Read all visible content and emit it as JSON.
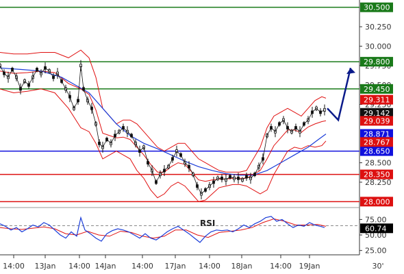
{
  "chart_data": [
    {
      "type": "line",
      "title": "",
      "description_style": "candlestick price with Bollinger Bands (red), moving average (blue), horizontal support/resistance lines, forecast arrow",
      "x_tick_labels": [
        "14:00",
        "13Jan",
        "14:00",
        "14Jan",
        "14:00",
        "17Jan",
        "14:00",
        "18Jan",
        "14:00",
        "19Jan",
        "30'"
      ],
      "y_axis_labels": [
        "30.250",
        "30.000",
        "29.750",
        "29.500",
        "29.250",
        "28.500",
        "28.250"
      ],
      "ylim": [
        27.95,
        30.55
      ],
      "levels": [
        {
          "label": "30.500",
          "value": 30.5,
          "color": "#1a7a1a"
        },
        {
          "label": "29.800",
          "value": 29.8,
          "color": "#1a7a1a"
        },
        {
          "label": "29.450",
          "value": 29.45,
          "color": "#1a7a1a"
        },
        {
          "label": "28.650",
          "value": 28.65,
          "color": "#1010dd"
        },
        {
          "label": "28.350",
          "value": 28.35,
          "color": "#dd1010"
        },
        {
          "label": "28.000",
          "value": 28.0,
          "color": "#dd1010"
        }
      ],
      "badges": [
        {
          "label": "29.311",
          "value": 29.311,
          "color": "#dd1010"
        },
        {
          "label": "29.142",
          "value": 29.142,
          "color": "#111111"
        },
        {
          "label": "29.039",
          "value": 29.039,
          "color": "#dd1010"
        },
        {
          "label": "28.871",
          "value": 28.871,
          "color": "#1010dd"
        },
        {
          "label": "28.767",
          "value": 28.767,
          "color": "#dd1010"
        }
      ],
      "price_path": [
        [
          0,
          29.75
        ],
        [
          6,
          29.65
        ],
        [
          12,
          29.6
        ],
        [
          18,
          29.7
        ],
        [
          24,
          29.6
        ],
        [
          30,
          29.45
        ],
        [
          36,
          29.55
        ],
        [
          42,
          29.5
        ],
        [
          48,
          29.6
        ],
        [
          54,
          29.7
        ],
        [
          60,
          29.65
        ],
        [
          66,
          29.72
        ],
        [
          72,
          29.68
        ],
        [
          78,
          29.6
        ],
        [
          84,
          29.65
        ],
        [
          90,
          29.55
        ],
        [
          96,
          29.45
        ],
        [
          102,
          29.35
        ],
        [
          108,
          29.2
        ],
        [
          114,
          29.3
        ],
        [
          118,
          29.75
        ],
        [
          122,
          29.45
        ],
        [
          128,
          29.3
        ],
        [
          134,
          29.2
        ],
        [
          140,
          29.0
        ],
        [
          145,
          28.75
        ],
        [
          150,
          28.7
        ],
        [
          156,
          28.8
        ],
        [
          162,
          28.75
        ],
        [
          168,
          28.85
        ],
        [
          174,
          28.9
        ],
        [
          180,
          28.95
        ],
        [
          186,
          28.9
        ],
        [
          192,
          28.85
        ],
        [
          198,
          28.75
        ],
        [
          204,
          28.65
        ],
        [
          210,
          28.7
        ],
        [
          216,
          28.5
        ],
        [
          222,
          28.4
        ],
        [
          228,
          28.25
        ],
        [
          234,
          28.35
        ],
        [
          240,
          28.4
        ],
        [
          246,
          28.45
        ],
        [
          252,
          28.55
        ],
        [
          258,
          28.65
        ],
        [
          264,
          28.6
        ],
        [
          270,
          28.5
        ],
        [
          276,
          28.45
        ],
        [
          282,
          28.35
        ],
        [
          288,
          28.2
        ],
        [
          294,
          28.1
        ],
        [
          300,
          28.15
        ],
        [
          306,
          28.2
        ],
        [
          312,
          28.25
        ],
        [
          318,
          28.3
        ],
        [
          324,
          28.3
        ],
        [
          330,
          28.28
        ],
        [
          336,
          28.32
        ],
        [
          342,
          28.3
        ],
        [
          348,
          28.3
        ],
        [
          354,
          28.28
        ],
        [
          360,
          28.32
        ],
        [
          366,
          28.3
        ],
        [
          372,
          28.35
        ],
        [
          378,
          28.45
        ],
        [
          384,
          28.55
        ],
        [
          390,
          28.85
        ],
        [
          396,
          28.95
        ],
        [
          402,
          28.9
        ],
        [
          408,
          29.0
        ],
        [
          414,
          29.05
        ],
        [
          420,
          28.95
        ],
        [
          426,
          28.9
        ],
        [
          432,
          28.95
        ],
        [
          438,
          28.9
        ],
        [
          444,
          29.0
        ],
        [
          450,
          29.05
        ],
        [
          456,
          29.15
        ],
        [
          462,
          29.2
        ],
        [
          468,
          29.15
        ],
        [
          474,
          29.18
        ]
      ],
      "upper_band": [
        [
          0,
          29.92
        ],
        [
          20,
          29.9
        ],
        [
          40,
          29.9
        ],
        [
          60,
          29.92
        ],
        [
          80,
          29.92
        ],
        [
          100,
          29.85
        ],
        [
          118,
          29.95
        ],
        [
          130,
          29.85
        ],
        [
          140,
          29.6
        ],
        [
          150,
          29.2
        ],
        [
          160,
          29.1
        ],
        [
          170,
          29.0
        ],
        [
          180,
          29.05
        ],
        [
          190,
          29.05
        ],
        [
          200,
          29.0
        ],
        [
          210,
          28.9
        ],
        [
          220,
          28.8
        ],
        [
          230,
          28.7
        ],
        [
          240,
          28.65
        ],
        [
          250,
          28.7
        ],
        [
          260,
          28.75
        ],
        [
          270,
          28.75
        ],
        [
          280,
          28.65
        ],
        [
          290,
          28.55
        ],
        [
          300,
          28.5
        ],
        [
          310,
          28.45
        ],
        [
          320,
          28.4
        ],
        [
          330,
          28.38
        ],
        [
          340,
          28.38
        ],
        [
          350,
          28.38
        ],
        [
          360,
          28.4
        ],
        [
          370,
          28.55
        ],
        [
          380,
          28.7
        ],
        [
          390,
          28.95
        ],
        [
          400,
          29.1
        ],
        [
          410,
          29.15
        ],
        [
          420,
          29.2
        ],
        [
          430,
          29.15
        ],
        [
          440,
          29.1
        ],
        [
          450,
          29.2
        ],
        [
          460,
          29.3
        ],
        [
          470,
          29.35
        ],
        [
          476,
          29.33
        ]
      ],
      "lower_band": [
        [
          0,
          29.45
        ],
        [
          20,
          29.4
        ],
        [
          40,
          29.42
        ],
        [
          60,
          29.45
        ],
        [
          80,
          29.4
        ],
        [
          100,
          29.2
        ],
        [
          118,
          28.95
        ],
        [
          130,
          28.9
        ],
        [
          140,
          28.75
        ],
        [
          150,
          28.55
        ],
        [
          160,
          28.6
        ],
        [
          170,
          28.65
        ],
        [
          180,
          28.6
        ],
        [
          190,
          28.55
        ],
        [
          200,
          28.4
        ],
        [
          210,
          28.3
        ],
        [
          220,
          28.15
        ],
        [
          230,
          28.05
        ],
        [
          240,
          28.1
        ],
        [
          250,
          28.2
        ],
        [
          260,
          28.25
        ],
        [
          270,
          28.2
        ],
        [
          280,
          28.1
        ],
        [
          290,
          28.0
        ],
        [
          300,
          28.02
        ],
        [
          310,
          28.1
        ],
        [
          320,
          28.18
        ],
        [
          330,
          28.2
        ],
        [
          340,
          28.22
        ],
        [
          350,
          28.22
        ],
        [
          360,
          28.2
        ],
        [
          370,
          28.15
        ],
        [
          380,
          28.1
        ],
        [
          390,
          28.15
        ],
        [
          400,
          28.35
        ],
        [
          410,
          28.5
        ],
        [
          420,
          28.65
        ],
        [
          430,
          28.7
        ],
        [
          440,
          28.68
        ],
        [
          450,
          28.72
        ],
        [
          460,
          28.7
        ],
        [
          470,
          28.72
        ],
        [
          476,
          28.78
        ]
      ],
      "middle_band": [
        [
          0,
          29.68
        ],
        [
          20,
          29.65
        ],
        [
          40,
          29.66
        ],
        [
          60,
          29.68
        ],
        [
          80,
          29.66
        ],
        [
          100,
          29.52
        ],
        [
          118,
          29.45
        ],
        [
          130,
          29.38
        ],
        [
          140,
          29.18
        ],
        [
          150,
          28.88
        ],
        [
          160,
          28.85
        ],
        [
          170,
          28.82
        ],
        [
          180,
          28.83
        ],
        [
          190,
          28.8
        ],
        [
          200,
          28.7
        ],
        [
          210,
          28.6
        ],
        [
          220,
          28.48
        ],
        [
          230,
          28.38
        ],
        [
          240,
          28.38
        ],
        [
          250,
          28.45
        ],
        [
          260,
          28.5
        ],
        [
          270,
          28.48
        ],
        [
          280,
          28.38
        ],
        [
          290,
          28.28
        ],
        [
          300,
          28.26
        ],
        [
          310,
          28.28
        ],
        [
          320,
          28.29
        ],
        [
          330,
          28.29
        ],
        [
          340,
          28.3
        ],
        [
          350,
          28.3
        ],
        [
          360,
          28.3
        ],
        [
          370,
          28.35
        ],
        [
          380,
          28.4
        ],
        [
          390,
          28.55
        ],
        [
          400,
          28.72
        ],
        [
          410,
          28.82
        ],
        [
          420,
          28.92
        ],
        [
          430,
          28.92
        ],
        [
          440,
          28.89
        ],
        [
          450,
          28.96
        ],
        [
          460,
          29.0
        ],
        [
          470,
          29.03
        ],
        [
          476,
          29.04
        ]
      ],
      "moving_average": [
        [
          0,
          29.72
        ],
        [
          30,
          29.7
        ],
        [
          60,
          29.68
        ],
        [
          90,
          29.6
        ],
        [
          110,
          29.5
        ],
        [
          130,
          29.4
        ],
        [
          150,
          29.2
        ],
        [
          170,
          29.0
        ],
        [
          190,
          28.85
        ],
        [
          210,
          28.75
        ],
        [
          230,
          28.68
        ],
        [
          250,
          28.6
        ],
        [
          270,
          28.52
        ],
        [
          290,
          28.45
        ],
        [
          310,
          28.4
        ],
        [
          330,
          28.36
        ],
        [
          350,
          28.34
        ],
        [
          370,
          28.34
        ],
        [
          390,
          28.4
        ],
        [
          410,
          28.5
        ],
        [
          430,
          28.6
        ],
        [
          450,
          28.7
        ],
        [
          465,
          28.8
        ],
        [
          476,
          28.87
        ]
      ],
      "forecast_arrow": [
        [
          478,
          29.2
        ],
        [
          494,
          29.05
        ],
        [
          512,
          29.72
        ]
      ]
    },
    {
      "type": "line",
      "title": "RSI",
      "y_axis_labels": [
        "75.00",
        "50.00",
        "25.00"
      ],
      "ylim": [
        18,
        92
      ],
      "badges": [
        {
          "label": "60.74",
          "value": 60.74,
          "color": "#000000"
        }
      ],
      "rsi": [
        [
          0,
          68
        ],
        [
          8,
          64
        ],
        [
          16,
          58
        ],
        [
          24,
          62
        ],
        [
          32,
          55
        ],
        [
          40,
          60
        ],
        [
          48,
          66
        ],
        [
          56,
          63
        ],
        [
          64,
          70
        ],
        [
          72,
          66
        ],
        [
          80,
          58
        ],
        [
          88,
          50
        ],
        [
          96,
          45
        ],
        [
          104,
          55
        ],
        [
          112,
          48
        ],
        [
          118,
          78
        ],
        [
          124,
          58
        ],
        [
          132,
          52
        ],
        [
          140,
          45
        ],
        [
          148,
          40
        ],
        [
          156,
          52
        ],
        [
          164,
          57
        ],
        [
          172,
          60
        ],
        [
          180,
          58
        ],
        [
          188,
          55
        ],
        [
          196,
          50
        ],
        [
          204,
          45
        ],
        [
          212,
          52
        ],
        [
          220,
          45
        ],
        [
          228,
          42
        ],
        [
          236,
          48
        ],
        [
          244,
          55
        ],
        [
          252,
          60
        ],
        [
          260,
          64
        ],
        [
          268,
          58
        ],
        [
          276,
          52
        ],
        [
          284,
          45
        ],
        [
          292,
          38
        ],
        [
          300,
          48
        ],
        [
          308,
          55
        ],
        [
          316,
          58
        ],
        [
          324,
          57
        ],
        [
          332,
          58
        ],
        [
          340,
          55
        ],
        [
          348,
          60
        ],
        [
          356,
          66
        ],
        [
          364,
          62
        ],
        [
          372,
          68
        ],
        [
          380,
          72
        ],
        [
          388,
          78
        ],
        [
          396,
          80
        ],
        [
          404,
          72
        ],
        [
          412,
          75
        ],
        [
          420,
          68
        ],
        [
          428,
          62
        ],
        [
          436,
          66
        ],
        [
          444,
          64
        ],
        [
          452,
          70
        ],
        [
          460,
          66
        ],
        [
          468,
          64
        ],
        [
          474,
          62
        ]
      ],
      "signal": [
        [
          0,
          62
        ],
        [
          16,
          60
        ],
        [
          32,
          59
        ],
        [
          48,
          61
        ],
        [
          64,
          63
        ],
        [
          80,
          60
        ],
        [
          96,
          52
        ],
        [
          112,
          50
        ],
        [
          128,
          56
        ],
        [
          144,
          50
        ],
        [
          160,
          48
        ],
        [
          176,
          56
        ],
        [
          192,
          54
        ],
        [
          208,
          48
        ],
        [
          224,
          45
        ],
        [
          240,
          48
        ],
        [
          256,
          58
        ],
        [
          272,
          58
        ],
        [
          288,
          50
        ],
        [
          304,
          46
        ],
        [
          320,
          54
        ],
        [
          336,
          56
        ],
        [
          352,
          58
        ],
        [
          368,
          62
        ],
        [
          384,
          70
        ],
        [
          400,
          76
        ],
        [
          416,
          72
        ],
        [
          432,
          66
        ],
        [
          448,
          66
        ],
        [
          464,
          67
        ],
        [
          476,
          64
        ]
      ],
      "hline_value": 65
    }
  ]
}
